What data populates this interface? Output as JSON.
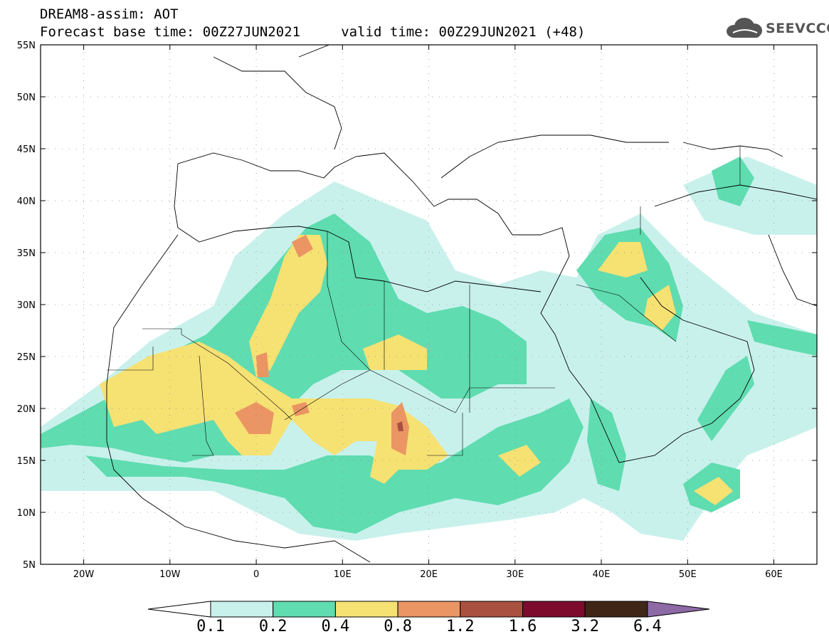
{
  "title": {
    "line1": "DREAM8-assim: AOT",
    "line2": "Forecast base time: 00Z27JUN2021     valid time: 00Z29JUN2021 (+48)"
  },
  "logo": {
    "text": "SEEVCCC",
    "icon": "cloud-icon"
  },
  "map": {
    "lon_labels": [
      "20W",
      "10W",
      "0",
      "10E",
      "20E",
      "30E",
      "40E",
      "50E",
      "60E"
    ],
    "lat_labels": [
      "55N",
      "50N",
      "45N",
      "40N",
      "35N",
      "30N",
      "25N",
      "20N",
      "15N",
      "10N",
      "5N"
    ],
    "lon_range": [
      -25,
      65
    ],
    "lat_range": [
      5,
      55
    ]
  },
  "colorbar": {
    "labels": [
      "0.1",
      "0.2",
      "0.4",
      "0.8",
      "1.2",
      "1.6",
      "3.2",
      "6.4"
    ],
    "colors": [
      "#ffffff",
      "#c9f1ec",
      "#5fdcb0",
      "#f6e173",
      "#ea9563",
      "#a95140",
      "#7d0b2d",
      "#3f2616",
      "#8d69a6"
    ]
  }
}
